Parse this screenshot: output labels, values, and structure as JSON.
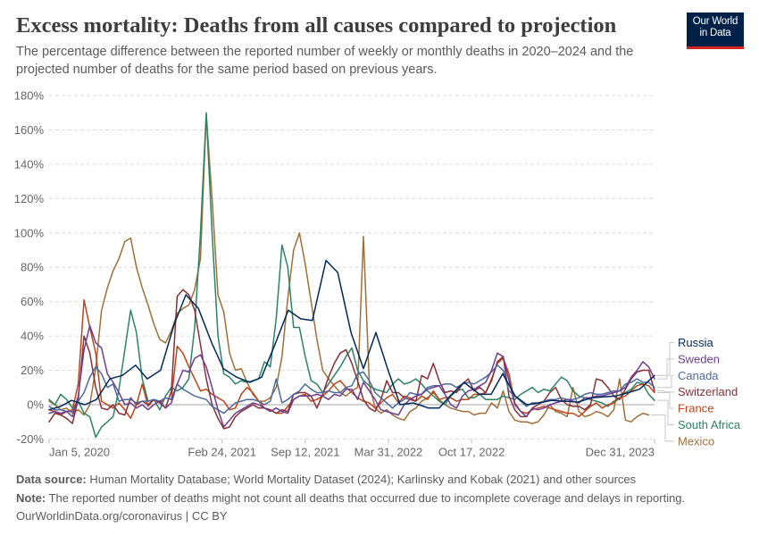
{
  "header": {
    "title": "Excess mortality: Deaths from all causes compared to projection",
    "subtitle": "The percentage difference between the reported number of weekly or monthly deaths in 2020–2024 and the projected number of deaths for the same period based on previous years."
  },
  "logo": {
    "line1": "Our World",
    "line2": "in Data",
    "bg_color": "#002147",
    "accent_color": "#ce261e"
  },
  "footer": {
    "source_label": "Data source:",
    "source_text": "Human Mortality Database; World Mortality Dataset (2024); Karlinsky and Kobak (2021) and other sources",
    "note_label": "Note:",
    "note_text": "The reported number of deaths might not count all deaths that occurred due to incomplete coverage and delays in reporting.",
    "url": "OurWorldinData.org/coronavirus",
    "separator": "|",
    "license": "CC BY"
  },
  "chart_data": {
    "type": "line",
    "title": "Excess mortality: Deaths from all causes compared to projection",
    "xlabel": "",
    "ylabel": "",
    "unit": "%",
    "x_range": [
      "2020-01-05",
      "2023-12-31"
    ],
    "ylim": [
      -20,
      180
    ],
    "grid": true,
    "legend_position": "right",
    "y_ticks": [
      {
        "value": -20,
        "label": "-20%"
      },
      {
        "value": 0,
        "label": "0%"
      },
      {
        "value": 20,
        "label": "20%"
      },
      {
        "value": 40,
        "label": "40%"
      },
      {
        "value": 60,
        "label": "60%"
      },
      {
        "value": 80,
        "label": "80%"
      },
      {
        "value": 100,
        "label": "100%"
      },
      {
        "value": 120,
        "label": "120%"
      },
      {
        "value": 140,
        "label": "140%"
      },
      {
        "value": 160,
        "label": "160%"
      },
      {
        "value": 180,
        "label": "180%"
      }
    ],
    "x_ticks": [
      {
        "date": "2020-01-05",
        "label": "Jan 5, 2020"
      },
      {
        "date": "2021-02-24",
        "label": "Feb 24, 2021"
      },
      {
        "date": "2021-09-12",
        "label": "Sep 12, 2021"
      },
      {
        "date": "2022-03-31",
        "label": "Mar 31, 2022"
      },
      {
        "date": "2022-10-17",
        "label": "Oct 17, 2022"
      },
      {
        "date": "2023-12-31",
        "label": "Dec 31, 2023"
      }
    ],
    "series": [
      {
        "name": "Russia",
        "color": "#00295b",
        "frequency": "monthly",
        "dates": [
          "2020-01-05",
          "2020-02-02",
          "2020-02-28",
          "2020-03-31",
          "2020-04-28",
          "2020-05-30",
          "2020-06-29",
          "2020-07-31",
          "2020-08-28",
          "2020-09-29",
          "2020-11-01",
          "2020-11-29",
          "2020-12-29",
          "2021-01-30",
          "2021-02-27",
          "2021-03-31",
          "2021-05-02",
          "2021-05-30",
          "2021-07-01",
          "2021-08-02",
          "2021-09-01",
          "2021-09-29",
          "2021-11-01",
          "2021-11-29",
          "2021-12-31",
          "2022-01-30",
          "2022-03-01",
          "2022-03-29",
          "2022-04-28",
          "2022-05-30",
          "2022-07-06",
          "2022-07-31",
          "2022-08-30",
          "2022-09-29",
          "2022-11-05",
          "2022-12-03",
          "2022-12-31",
          "2023-01-30",
          "2023-02-27",
          "2023-03-29",
          "2023-04-28",
          "2023-05-28",
          "2023-06-29",
          "2023-08-02",
          "2023-09-01",
          "2023-09-29",
          "2023-10-29",
          "2023-11-25",
          "2023-12-31"
        ],
        "values": [
          -3,
          -1,
          2.5,
          0,
          3,
          15,
          17,
          23,
          15,
          20,
          47,
          64,
          56,
          36,
          21,
          16,
          13,
          16,
          35,
          55,
          50,
          49,
          84,
          77,
          42,
          21,
          42,
          21,
          0,
          1,
          -2,
          -2,
          6,
          13,
          6,
          6,
          18,
          5,
          0,
          1,
          2.5,
          2,
          1.5,
          4,
          4.5,
          5,
          7,
          9,
          17
        ]
      },
      {
        "name": "Sweden",
        "color": "#6d3e91",
        "frequency": "weekly",
        "start": "2020-01-05",
        "step_days": 14,
        "values": [
          -5,
          -4,
          -5,
          -4,
          -7,
          5,
          32,
          46,
          36,
          33,
          18,
          13,
          7,
          0,
          1,
          -2,
          0,
          -3,
          0,
          2,
          -2,
          1,
          12,
          20,
          19,
          27,
          29,
          22,
          10,
          -3,
          -13,
          -9,
          -5,
          -3,
          -1,
          1,
          0,
          -2,
          -4,
          -2,
          -4,
          -5,
          3,
          5,
          5,
          5,
          6,
          5,
          3,
          6,
          5,
          9,
          9,
          3,
          13,
          8,
          3,
          -3,
          -4,
          -5,
          -6,
          0,
          3,
          5,
          6,
          9,
          10,
          11,
          6,
          0,
          -2,
          5,
          8,
          9,
          11,
          13,
          20,
          30,
          28,
          14,
          0,
          -4,
          -7,
          -2,
          -3,
          -2,
          0,
          1,
          2,
          3,
          2,
          1,
          4,
          4,
          5,
          5,
          6,
          7,
          8,
          10,
          16,
          20,
          25,
          22,
          15
        ]
      },
      {
        "name": "Canada",
        "color": "#4c6a9c",
        "frequency": "weekly",
        "start": "2020-01-05",
        "step_days": 14,
        "values": [
          -1,
          -3,
          -3,
          -4,
          -4,
          2,
          7,
          16,
          22,
          18,
          10,
          12,
          2,
          3,
          3,
          1,
          2,
          2,
          3,
          2,
          4,
          3,
          12,
          9,
          7,
          5,
          4,
          3,
          -1,
          -3,
          -5,
          -2,
          1,
          2,
          3,
          3,
          2,
          0,
          2,
          15,
          1,
          3,
          6,
          8,
          12,
          9,
          7,
          7,
          8,
          7,
          7,
          10,
          11,
          18,
          19,
          14,
          7,
          4,
          1,
          -2,
          1,
          3,
          7,
          6,
          6,
          10,
          11,
          11,
          12,
          12,
          10,
          12,
          13,
          12,
          14,
          16,
          19,
          23,
          20,
          8,
          5,
          2,
          -1,
          1,
          1,
          2,
          3,
          3,
          4,
          3,
          3,
          4,
          6,
          7,
          6,
          6,
          7,
          8,
          8,
          12,
          13,
          15,
          13,
          13,
          10
        ]
      },
      {
        "name": "Switzerland",
        "color": "#883039",
        "frequency": "weekly",
        "start": "2020-01-05",
        "step_days": 14,
        "values": [
          -10,
          -5,
          -6,
          -8,
          -11,
          3,
          40,
          30,
          10,
          -2,
          -3,
          0,
          -5,
          -6,
          4,
          0,
          2,
          0,
          3,
          1,
          -2,
          8,
          63,
          67,
          64,
          55,
          35,
          15,
          0,
          -8,
          -14,
          -13,
          -7,
          -4,
          -2,
          0,
          -2,
          -2,
          -3,
          -5,
          -3,
          -4,
          6,
          7,
          7,
          5,
          -2,
          6,
          16,
          24,
          30,
          32,
          24,
          14,
          3,
          -2,
          -4,
          3,
          14,
          7,
          7,
          4,
          3,
          2,
          17,
          15,
          24,
          14,
          7,
          8,
          7,
          12,
          15,
          8,
          10,
          7,
          14,
          25,
          28,
          5,
          -3,
          -7,
          -7,
          -2,
          0,
          2,
          7,
          10,
          3,
          0,
          -1,
          -1,
          -3,
          0,
          15,
          14,
          10,
          5,
          3,
          9,
          15,
          19,
          20,
          20,
          8
        ]
      },
      {
        "name": "France",
        "color": "#b9461b",
        "frequency": "weekly",
        "start": "2020-01-05",
        "step_days": 14,
        "values": [
          -3,
          -4,
          -6,
          -4,
          -3,
          12,
          61,
          45,
          30,
          2,
          0,
          -2,
          1,
          -3,
          -8,
          0,
          12,
          -1,
          3,
          1,
          4,
          3,
          34,
          30,
          22,
          15,
          8,
          9,
          6,
          4,
          2,
          -3,
          -2,
          6,
          10,
          7,
          2,
          -2,
          -3,
          -5,
          -5,
          -1,
          3,
          5,
          6,
          2,
          3,
          5,
          8,
          12,
          14,
          10,
          7,
          4,
          2,
          1,
          -2,
          1,
          4,
          6,
          1,
          5,
          4,
          2,
          5,
          3,
          8,
          3,
          4,
          4,
          2,
          3,
          3,
          6,
          6,
          7,
          15,
          24,
          27,
          18,
          1,
          -4,
          -5,
          -3,
          -2,
          -1,
          -2,
          -3,
          -4,
          -5,
          -5,
          -7,
          -4,
          -1,
          1,
          -2,
          0,
          1,
          4,
          5,
          8,
          11,
          12,
          11,
          7
        ]
      },
      {
        "name": "South Africa",
        "color": "#2c8465",
        "frequency": "weekly",
        "start": "2020-01-05",
        "step_days": 14,
        "values": [
          3,
          0,
          6,
          3,
          -2,
          2,
          -5,
          -7,
          -19,
          -13,
          -10,
          -7,
          9,
          32,
          55,
          42,
          15,
          2,
          3,
          -3,
          5,
          10,
          8,
          10,
          15,
          45,
          100,
          170,
          100,
          40,
          18,
          16,
          12,
          14,
          13,
          14,
          15,
          25,
          22,
          50,
          93,
          80,
          45,
          45,
          28,
          14,
          12,
          7,
          12,
          17,
          22,
          28,
          33,
          20,
          14,
          11,
          9,
          8,
          7,
          12,
          15,
          12,
          13,
          15,
          12,
          8,
          5,
          2,
          0,
          5,
          8,
          9,
          4,
          4,
          6,
          3,
          3,
          3,
          5,
          4,
          3,
          6,
          8,
          10,
          7,
          9,
          8,
          12,
          16,
          14,
          8,
          5,
          4,
          3,
          2,
          1,
          -1,
          2,
          4,
          7,
          9,
          13,
          12,
          6,
          2.5
        ]
      },
      {
        "name": "Mexico",
        "color": "#a06f37",
        "frequency": "weekly",
        "start": "2020-01-05",
        "step_days": 14,
        "values": [
          2,
          0,
          -3,
          -2,
          -5,
          -3,
          -6,
          0,
          21,
          55,
          68,
          78,
          85,
          95,
          97,
          80,
          68,
          58,
          47,
          38,
          36,
          43,
          53,
          56,
          58,
          67,
          85,
          169,
          120,
          64,
          54,
          30,
          20,
          21,
          13,
          6,
          2,
          2,
          4,
          10,
          28,
          62,
          90,
          100,
          82,
          60,
          38,
          20,
          15,
          11,
          7,
          5,
          8,
          10,
          98,
          12,
          -2,
          -5,
          -3,
          -6,
          -8,
          -9,
          -4,
          -2,
          2,
          4,
          7,
          3,
          0,
          -2,
          -3,
          -4,
          -4,
          -6,
          -5,
          -5,
          1,
          -2,
          8,
          -4,
          -9,
          -10,
          -10,
          -11,
          -10,
          -6,
          0,
          -4,
          -5,
          -7,
          10,
          -4,
          -7,
          -6,
          -4,
          -5,
          -7,
          -3,
          15,
          -9,
          -10,
          -7,
          -5,
          -6
        ]
      }
    ]
  }
}
